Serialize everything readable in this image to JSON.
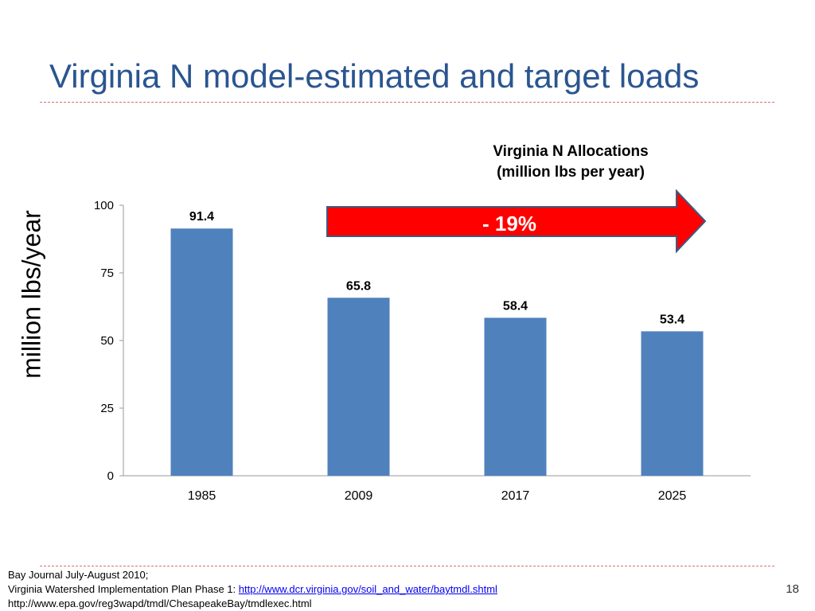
{
  "slide": {
    "title": "Virginia N model-estimated and target loads",
    "page_number": "18"
  },
  "allocation_heading": {
    "line1": "Virginia N Allocations",
    "line2": "(million lbs per year)"
  },
  "arrow": {
    "label": "- 19%",
    "fill_color": "#ff0000",
    "stroke_color": "#3d5a80"
  },
  "footer": {
    "line1": "Bay Journal July-August 2010;",
    "line2_prefix": "Virginia Watershed Implementation Plan Phase 1: ",
    "line2_link": "http://www.dcr.virginia.gov/soil_and_water/baytmdl.shtml",
    "line3": "http://www.epa.gov/reg3wapd/tmdl/ChesapeakeBay/tmdlexec.html"
  },
  "colors": {
    "title": "#2a5590",
    "bar": "#4f81bd",
    "divider": "#d9706a"
  },
  "chart_data": {
    "type": "bar",
    "categories": [
      "1985",
      "2009",
      "2017",
      "2025"
    ],
    "values": [
      91.4,
      65.8,
      58.4,
      53.4
    ],
    "data_labels": [
      "91.4",
      "65.8",
      "58.4",
      "53.4"
    ],
    "yticks": [
      "0",
      "25",
      "50",
      "75",
      "100"
    ],
    "ylim": [
      0,
      100
    ],
    "ylabel": "million lbs/year",
    "xlabel": "",
    "grid": false,
    "legend": "none"
  }
}
